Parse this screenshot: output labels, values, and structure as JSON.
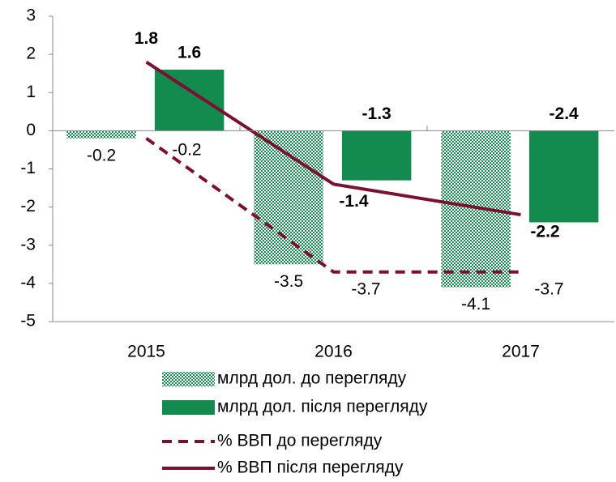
{
  "chart_data": {
    "type": "bar",
    "categories": [
      "2015",
      "2016",
      "2017"
    ],
    "ylim": [
      -5,
      3
    ],
    "yticks": [
      -5,
      -4,
      -3,
      -2,
      -1,
      0,
      1,
      2,
      3
    ],
    "series": [
      {
        "name": "млрд дол. до перегляду",
        "type": "bar",
        "style": "hatched",
        "color": "#138a4e",
        "values": [
          -0.2,
          -3.5,
          -4.1
        ]
      },
      {
        "name": "млрд дол. після перегляду",
        "type": "bar",
        "style": "solid",
        "color": "#138a4e",
        "values": [
          1.6,
          -1.3,
          -2.4
        ]
      },
      {
        "name": "% ВВП до перегляду",
        "type": "line",
        "style": "dashed",
        "color": "#7b1030",
        "values": [
          -0.2,
          -3.7,
          -3.7
        ]
      },
      {
        "name": "% ВВП після перегляду",
        "type": "line",
        "style": "solid",
        "color": "#7b1030",
        "values": [
          1.8,
          -1.4,
          -2.2
        ]
      }
    ]
  }
}
